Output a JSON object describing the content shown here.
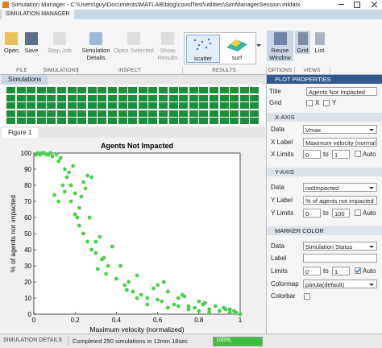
{
  "window": {
    "title": "Simulation Manager - C:\\Users\\guy\\Documents\\MATLAB\\blog\\covidTest\\utilities\\SimManagerSession.mldatx"
  },
  "toolstrip": {
    "tab": "SIMULATION MANAGER",
    "buttons": [
      "Open",
      "Save",
      "Stop Job",
      "Simulation Details",
      "Open Selected",
      "Show Results",
      "Reuse Window",
      "Grid",
      "List"
    ],
    "gallery": [
      "scatter",
      "surf"
    ],
    "sections": [
      "FILE",
      "SIMULATIONS",
      "INSPECT",
      "RESULTS",
      "OPTIONS",
      "VIEWS"
    ]
  },
  "simulations_tab": "Simulations",
  "figure": {
    "type": "scatter",
    "tab": "Figure 1",
    "title": "Agents Not Impacted",
    "xlabel": "Maximum velocity (normalized)",
    "ylabel": "% of agents not impacted",
    "xlim": [
      0,
      1
    ],
    "ylim": [
      0,
      100
    ],
    "xticks": [
      0,
      0.2,
      0.4,
      0.6,
      0.8,
      1
    ],
    "yticks": [
      0,
      10,
      20,
      30,
      40,
      50,
      60,
      70,
      80,
      90,
      100
    ],
    "color": "#4cd04c",
    "points": [
      [
        0.01,
        99
      ],
      [
        0.03,
        99
      ],
      [
        0.05,
        100
      ],
      [
        0.07,
        99
      ],
      [
        0.09,
        98
      ],
      [
        0.11,
        99
      ],
      [
        0.13,
        97
      ],
      [
        0.02,
        100
      ],
      [
        0.04,
        100
      ],
      [
        0.06,
        99
      ],
      [
        0.08,
        100
      ],
      [
        0.12,
        95
      ],
      [
        0.15,
        90
      ],
      [
        0.17,
        88
      ],
      [
        0.19,
        92
      ],
      [
        0.14,
        80
      ],
      [
        0.16,
        85
      ],
      [
        0.18,
        70
      ],
      [
        0.2,
        75
      ],
      [
        0.22,
        66
      ],
      [
        0.24,
        82
      ],
      [
        0.26,
        86
      ],
      [
        0.21,
        60
      ],
      [
        0.23,
        73
      ],
      [
        0.25,
        78
      ],
      [
        0.28,
        85
      ],
      [
        0.1,
        74
      ],
      [
        0.12,
        70
      ],
      [
        0.15,
        76
      ],
      [
        0.18,
        80
      ],
      [
        0.2,
        62
      ],
      [
        0.22,
        55
      ],
      [
        0.24,
        50
      ],
      [
        0.27,
        60
      ],
      [
        0.3,
        45
      ],
      [
        0.26,
        45
      ],
      [
        0.28,
        40
      ],
      [
        0.3,
        38
      ],
      [
        0.32,
        48
      ],
      [
        0.34,
        35
      ],
      [
        0.36,
        30
      ],
      [
        0.38,
        42
      ],
      [
        0.31,
        28
      ],
      [
        0.33,
        34
      ],
      [
        0.35,
        25
      ],
      [
        0.4,
        22
      ],
      [
        0.42,
        30
      ],
      [
        0.44,
        18
      ],
      [
        0.46,
        20
      ],
      [
        0.48,
        14
      ],
      [
        0.5,
        24
      ],
      [
        0.52,
        12
      ],
      [
        0.55,
        10
      ],
      [
        0.58,
        16
      ],
      [
        0.6,
        18
      ],
      [
        0.62,
        8
      ],
      [
        0.65,
        14
      ],
      [
        0.68,
        6
      ],
      [
        0.7,
        10
      ],
      [
        0.72,
        12
      ],
      [
        0.75,
        5
      ],
      [
        0.78,
        4
      ],
      [
        0.8,
        8
      ],
      [
        0.82,
        6
      ],
      [
        0.85,
        3
      ],
      [
        0.88,
        5
      ],
      [
        0.9,
        2
      ],
      [
        0.92,
        4
      ],
      [
        0.95,
        3
      ],
      [
        0.98,
        1
      ],
      [
        0.45,
        15
      ],
      [
        0.5,
        10
      ],
      [
        0.55,
        6
      ],
      [
        0.6,
        9
      ],
      [
        0.65,
        4
      ],
      [
        0.7,
        5
      ],
      [
        0.75,
        3
      ],
      [
        0.8,
        2
      ],
      [
        0.85,
        1
      ],
      [
        0.9,
        2
      ],
      [
        0.95,
        1
      ],
      [
        1,
        0
      ],
      [
        0.63,
        20
      ],
      [
        0.73,
        11
      ],
      [
        0.83,
        7
      ],
      [
        0.93,
        3
      ],
      [
        0.97,
        2
      ]
    ]
  },
  "properties": {
    "header": "PLOT PROPERTIES",
    "title_label": "Title",
    "title_value": "Agents Not Impacted",
    "grid_label": "Grid",
    "grid_x": "X",
    "grid_y": "Y",
    "x_axis": {
      "header": "X-AXIS",
      "data_label": "Data",
      "data_value": "Vmax",
      "label_label": "X Label",
      "label_value": "Maximum velocity (normal",
      "limits_label": "X Limits",
      "min": "0",
      "to": "to",
      "max": "1",
      "auto": "Auto"
    },
    "y_axis": {
      "header": "Y-AXIS",
      "data_label": "Data",
      "data_value": "notImpacted",
      "label_label": "Y Label",
      "label_value": "% of agents not impacted",
      "limits_label": "Y Limits",
      "min": "0",
      "to": "to",
      "max": "100",
      "auto": "Auto"
    },
    "marker": {
      "header": "MARKER COLOR",
      "data_label": "Data",
      "data_value": "Simulation Status",
      "label_label": "Label",
      "limits_label": "Limits",
      "min": "0",
      "to": "to",
      "max": "1",
      "auto": "Auto",
      "colormap_label": "Colormap",
      "colormap_value": "parula(default)",
      "colorbar_label": "Colorbar"
    }
  },
  "status": {
    "tab": "SIMULATION DETAILS",
    "message": "Completed 250 simulations in 12min 18sec",
    "progress": "100%"
  }
}
